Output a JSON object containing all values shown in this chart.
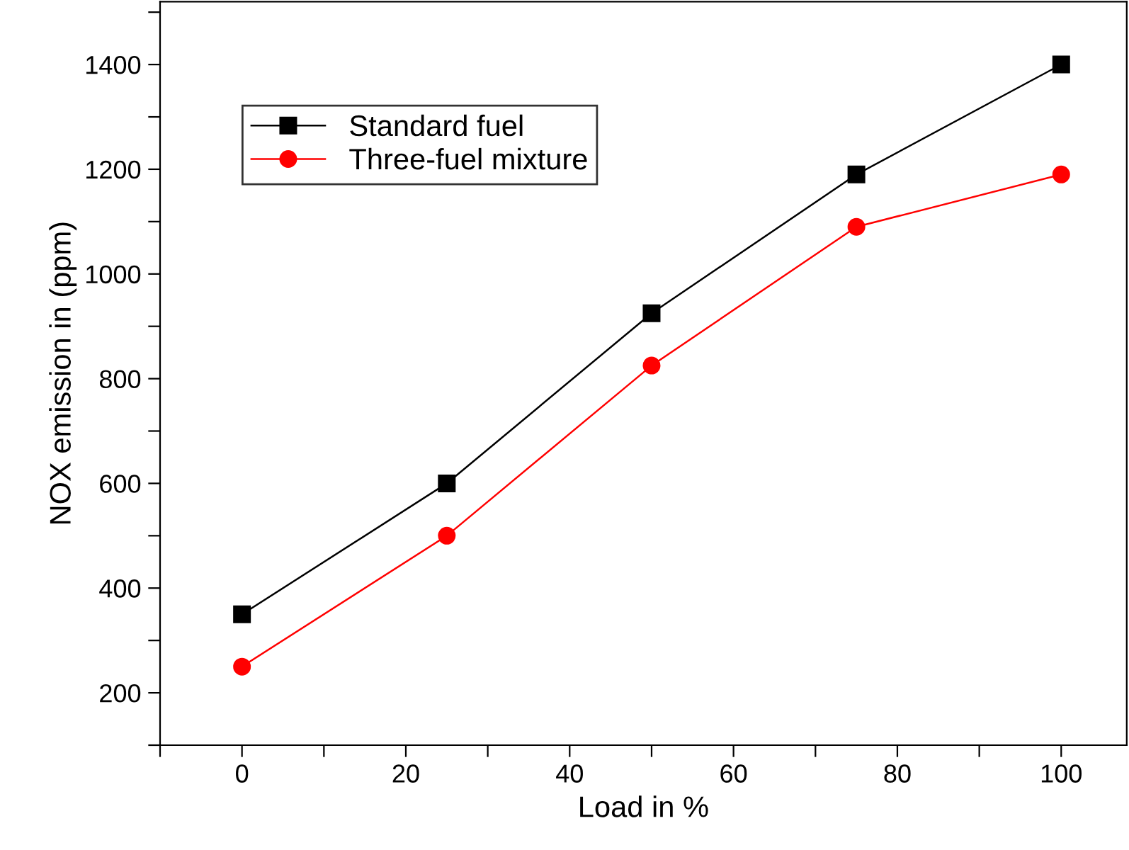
{
  "chart_data": {
    "type": "line",
    "xlabel": "Load in %",
    "ylabel": "NOX emission in (ppm)",
    "x": [
      0,
      25,
      50,
      75,
      100
    ],
    "series": [
      {
        "name": "Standard fuel",
        "color": "#000000",
        "values": [
          350,
          600,
          925,
          1190,
          1400
        ],
        "marker": "square"
      },
      {
        "name": "Three-fuel mixture",
        "color": "#ff0000",
        "values": [
          250,
          500,
          825,
          1090,
          1190
        ],
        "marker": "circle"
      }
    ],
    "xlim": [
      -10,
      108
    ],
    "ylim": [
      100,
      1520
    ],
    "xticks": [
      {
        "value": -10,
        "label": null
      },
      0,
      {
        "value": 10,
        "label": null
      },
      20,
      {
        "value": 30,
        "label": null
      },
      40,
      {
        "value": 50,
        "label": null
      },
      60,
      {
        "value": 70,
        "label": null
      },
      80,
      {
        "value": 90,
        "label": null
      },
      100
    ],
    "yticks": [
      {
        "value": 100,
        "label": null
      },
      200,
      {
        "value": 300,
        "label": null
      },
      400,
      {
        "value": 500,
        "label": null
      },
      600,
      {
        "value": 700,
        "label": null
      },
      800,
      {
        "value": 900,
        "label": null
      },
      1000,
      {
        "value": 1100,
        "label": null
      },
      1200,
      {
        "value": 1300,
        "label": null
      },
      1400,
      {
        "value": 1500,
        "label": null
      }
    ],
    "legend": "top left",
    "grid": false,
    "line_style": "solid"
  }
}
